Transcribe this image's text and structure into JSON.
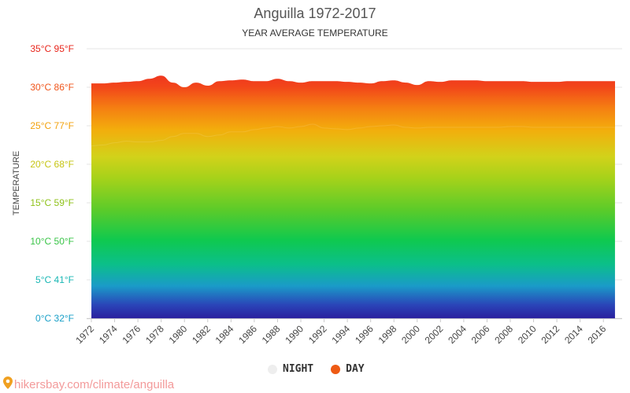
{
  "chart_data": {
    "type": "area",
    "title": "Anguilla 1972-2017",
    "subtitle": "YEAR AVERAGE TEMPERATURE",
    "ylabel": "TEMPERATURE",
    "xlabel": "",
    "ylim": [
      0,
      35
    ],
    "xlim": [
      1972,
      2017
    ],
    "grid": true,
    "legend_position": "bottom",
    "y_ticks": [
      {
        "value": 0,
        "label": "0°C 32°F",
        "color": "#1aa0c8"
      },
      {
        "value": 5,
        "label": "5°C 41°F",
        "color": "#19b7b4"
      },
      {
        "value": 10,
        "label": "10°C 50°F",
        "color": "#39c447"
      },
      {
        "value": 15,
        "label": "15°C 59°F",
        "color": "#8fc21a"
      },
      {
        "value": 20,
        "label": "20°C 68°F",
        "color": "#c6c514"
      },
      {
        "value": 25,
        "label": "25°C 77°F",
        "color": "#f2a20e"
      },
      {
        "value": 30,
        "label": "30°C 86°F",
        "color": "#f0561c"
      },
      {
        "value": 35,
        "label": "35°C 95°F",
        "color": "#e8261c"
      }
    ],
    "x_tick_labels": [
      "1972",
      "1974",
      "1976",
      "1978",
      "1980",
      "1982",
      "1984",
      "1986",
      "1988",
      "1990",
      "1992",
      "1994",
      "1996",
      "1998",
      "2000",
      "2002",
      "2004",
      "2006",
      "2008",
      "2010",
      "2012",
      "2014",
      "2016"
    ],
    "x_tick_values": [
      1972,
      1974,
      1976,
      1978,
      1980,
      1982,
      1984,
      1986,
      1988,
      1990,
      1992,
      1994,
      1996,
      1998,
      2000,
      2002,
      2004,
      2006,
      2008,
      2010,
      2012,
      2014,
      2016
    ],
    "series": [
      {
        "name": "NIGHT",
        "color": "#eeeeee",
        "x": [
          1972,
          1973,
          1974,
          1975,
          1976,
          1977,
          1978,
          1979,
          1980,
          1981,
          1982,
          1983,
          1984,
          1985,
          1986,
          1987,
          1988,
          1989,
          1990,
          1991,
          1992,
          1993,
          1994,
          1995,
          1996,
          1997,
          1998,
          1999,
          2000,
          2001,
          2002,
          2003,
          2004,
          2005,
          2006,
          2007,
          2008,
          2009,
          2010,
          2011,
          2012,
          2013,
          2014,
          2015,
          2016,
          2017
        ],
        "values": [
          22.4,
          22.5,
          22.8,
          23.0,
          22.9,
          22.9,
          23.1,
          23.6,
          24.0,
          24.0,
          23.6,
          23.8,
          24.2,
          24.2,
          24.5,
          24.7,
          24.9,
          24.7,
          24.9,
          25.2,
          24.7,
          24.6,
          24.5,
          24.7,
          24.9,
          25.0,
          25.1,
          24.8,
          24.7,
          24.8,
          24.8,
          24.8,
          24.8,
          24.8,
          24.8,
          24.8,
          24.9,
          24.9,
          24.8,
          24.8,
          24.8,
          24.8,
          24.8,
          24.8,
          24.8,
          24.8
        ]
      },
      {
        "name": "DAY",
        "color": "#ee5a14",
        "x": [
          1972,
          1973,
          1974,
          1975,
          1976,
          1977,
          1978,
          1979,
          1980,
          1981,
          1982,
          1983,
          1984,
          1985,
          1986,
          1987,
          1988,
          1989,
          1990,
          1991,
          1992,
          1993,
          1994,
          1995,
          1996,
          1997,
          1998,
          1999,
          2000,
          2001,
          2002,
          2003,
          2004,
          2005,
          2006,
          2007,
          2008,
          2009,
          2010,
          2011,
          2012,
          2013,
          2014,
          2015,
          2016,
          2017
        ],
        "values": [
          30.5,
          30.5,
          30.6,
          30.7,
          30.8,
          31.1,
          31.5,
          30.6,
          30.0,
          30.6,
          30.2,
          30.8,
          30.9,
          31.0,
          30.8,
          30.8,
          31.1,
          30.8,
          30.6,
          30.8,
          30.8,
          30.8,
          30.7,
          30.6,
          30.5,
          30.8,
          30.9,
          30.6,
          30.3,
          30.8,
          30.7,
          30.9,
          30.9,
          30.9,
          30.8,
          30.8,
          30.8,
          30.8,
          30.7,
          30.7,
          30.7,
          30.8,
          30.8,
          30.8,
          30.8,
          30.8
        ]
      }
    ]
  },
  "legend": [
    {
      "label": "NIGHT",
      "color": "#eeeeee"
    },
    {
      "label": "DAY",
      "color": "#ee5a14"
    }
  ],
  "source": {
    "text": "hikersbay.com/climate/anguilla",
    "icon": "location-pin-icon"
  }
}
